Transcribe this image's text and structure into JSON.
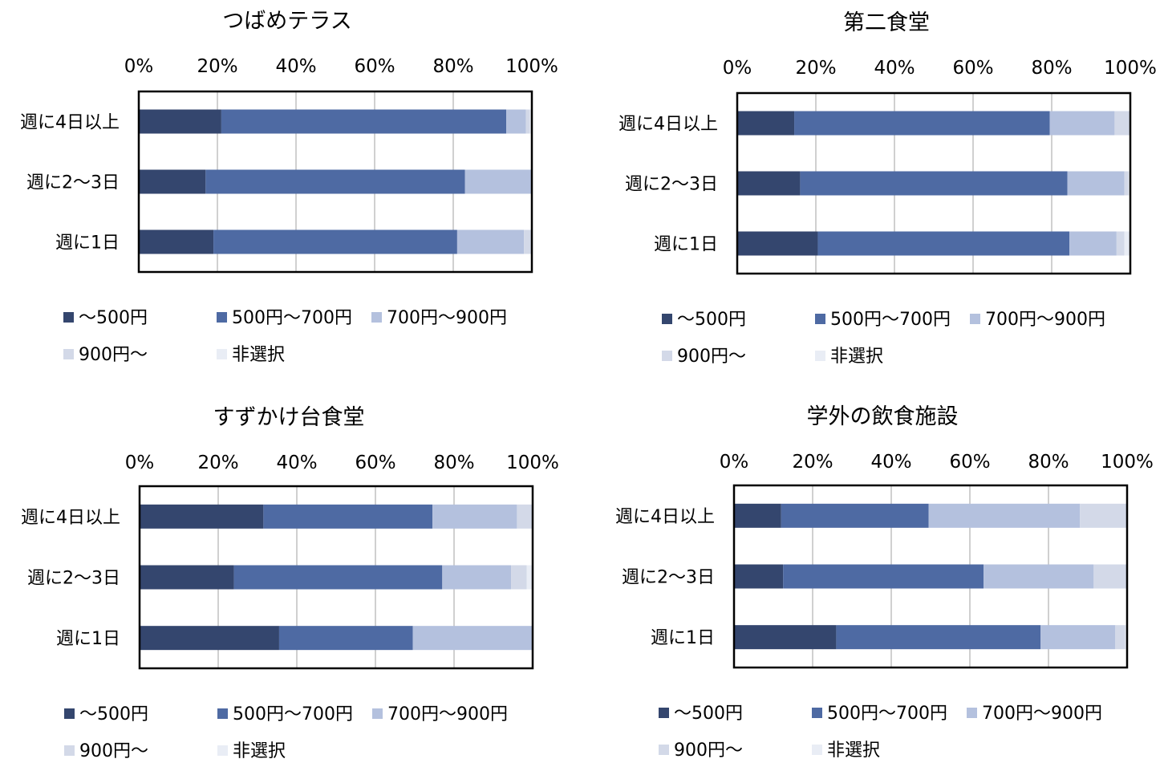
{
  "legend_labels": [
    "～500円",
    "500円～700円",
    "700円～900円",
    "900円～",
    "非選択"
  ],
  "colors": [
    "#34466e",
    "#4e6aa3",
    "#b4c1de",
    "#d3d9e8",
    "#e9edf5"
  ],
  "chart_data": [
    {
      "type": "bar",
      "orientation": "horizontal",
      "stacked": "percent",
      "title": "つばめテラス",
      "categories": [
        "週に4日以上",
        "週に2～3日",
        "週に1日"
      ],
      "xlim": [
        0,
        100
      ],
      "xticks": [
        "0%",
        "20%",
        "40%",
        "60%",
        "80%",
        "100%"
      ],
      "grid": true,
      "legend": "bottom",
      "series": [
        {
          "name": "～500円",
          "values": [
            21,
            17,
            19
          ]
        },
        {
          "name": "500円～700円",
          "values": [
            72.5,
            66,
            62
          ]
        },
        {
          "name": "700円～900円",
          "values": [
            5,
            17,
            17
          ]
        },
        {
          "name": "900円～",
          "values": [
            1,
            0,
            2
          ]
        },
        {
          "name": "非選択",
          "values": [
            0.5,
            0,
            0
          ]
        }
      ]
    },
    {
      "type": "bar",
      "orientation": "horizontal",
      "stacked": "percent",
      "title": "第二食堂",
      "categories": [
        "週に4日以上",
        "週に2～3日",
        "週に1日"
      ],
      "xlim": [
        0,
        100
      ],
      "xticks": [
        "0%",
        "20%",
        "40%",
        "60%",
        "80%",
        "100%"
      ],
      "grid": true,
      "legend": "bottom",
      "series": [
        {
          "name": "～500円",
          "values": [
            14.5,
            16,
            20.5
          ]
        },
        {
          "name": "500円～700円",
          "values": [
            65,
            68,
            64
          ]
        },
        {
          "name": "700円～900円",
          "values": [
            16.5,
            14.5,
            12
          ]
        },
        {
          "name": "900円～",
          "values": [
            4,
            1,
            2
          ]
        },
        {
          "name": "非選択",
          "values": [
            0,
            0.5,
            1.5
          ]
        }
      ]
    },
    {
      "type": "bar",
      "orientation": "horizontal",
      "stacked": "percent",
      "title": "すずかけ台食堂",
      "categories": [
        "週に4日以上",
        "週に2～3日",
        "週に1日"
      ],
      "xlim": [
        0,
        100
      ],
      "xticks": [
        "0%",
        "20%",
        "40%",
        "60%",
        "80%",
        "100%"
      ],
      "grid": true,
      "legend": "bottom",
      "series": [
        {
          "name": "～500円",
          "values": [
            31.5,
            24,
            35.5
          ]
        },
        {
          "name": "500円～700円",
          "values": [
            43,
            53,
            34
          ]
        },
        {
          "name": "700円～900円",
          "values": [
            21.5,
            17.5,
            30.5
          ]
        },
        {
          "name": "900円～",
          "values": [
            4,
            4,
            0
          ]
        },
        {
          "name": "非選択",
          "values": [
            0,
            1.5,
            0
          ]
        }
      ]
    },
    {
      "type": "bar",
      "orientation": "horizontal",
      "stacked": "percent",
      "title": "学外の飲食施設",
      "categories": [
        "週に4日以上",
        "週に2～3日",
        "週に1日"
      ],
      "xlim": [
        0,
        100
      ],
      "xticks": [
        "0%",
        "20%",
        "40%",
        "60%",
        "80%",
        "100%"
      ],
      "grid": true,
      "legend": "bottom",
      "series": [
        {
          "name": "～500円",
          "values": [
            12,
            12.5,
            26
          ]
        },
        {
          "name": "500円～700円",
          "values": [
            37.5,
            51,
            52
          ]
        },
        {
          "name": "700円～900円",
          "values": [
            38.5,
            28,
            19
          ]
        },
        {
          "name": "900円～",
          "values": [
            12,
            8.5,
            2.5
          ]
        },
        {
          "name": "非選択",
          "values": [
            0,
            0,
            0.5
          ]
        }
      ]
    }
  ]
}
